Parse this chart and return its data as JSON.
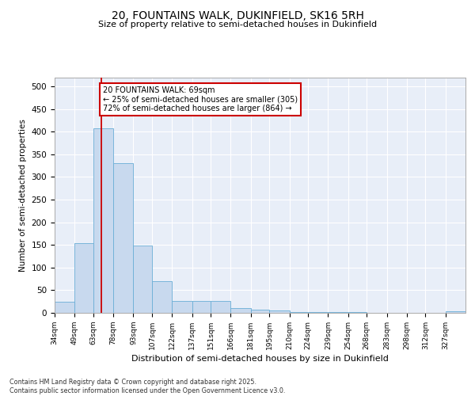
{
  "title_line1": "20, FOUNTAINS WALK, DUKINFIELD, SK16 5RH",
  "title_line2": "Size of property relative to semi-detached houses in Dukinfield",
  "xlabel": "Distribution of semi-detached houses by size in Dukinfield",
  "ylabel": "Number of semi-detached properties",
  "footer_line1": "Contains HM Land Registry data © Crown copyright and database right 2025.",
  "footer_line2": "Contains public sector information licensed under the Open Government Licence v3.0.",
  "annotation_title": "20 FOUNTAINS WALK: 69sqm",
  "annotation_line1": "← 25% of semi-detached houses are smaller (305)",
  "annotation_line2": "72% of semi-detached houses are larger (864) →",
  "property_size": 69,
  "bar_color": "#c8d9ee",
  "bar_edge_color": "#6aaed6",
  "vline_color": "#cc0000",
  "annotation_box_color": "#cc0000",
  "background_color": "#e8eef8",
  "bins": [
    34,
    49,
    63,
    78,
    93,
    107,
    122,
    137,
    151,
    166,
    181,
    195,
    210,
    224,
    239,
    254,
    268,
    283,
    298,
    312,
    327
  ],
  "bin_labels": [
    "34sqm",
    "49sqm",
    "63sqm",
    "78sqm",
    "93sqm",
    "107sqm",
    "122sqm",
    "137sqm",
    "151sqm",
    "166sqm",
    "181sqm",
    "195sqm",
    "210sqm",
    "224sqm",
    "239sqm",
    "254sqm",
    "268sqm",
    "283sqm",
    "298sqm",
    "312sqm",
    "327sqm"
  ],
  "counts": [
    25,
    153,
    408,
    330,
    148,
    70,
    27,
    27,
    27,
    10,
    7,
    5,
    2,
    1,
    1,
    1,
    0,
    0,
    0,
    0,
    3
  ],
  "ylim": [
    0,
    520
  ],
  "yticks": [
    0,
    50,
    100,
    150,
    200,
    250,
    300,
    350,
    400,
    450,
    500
  ]
}
